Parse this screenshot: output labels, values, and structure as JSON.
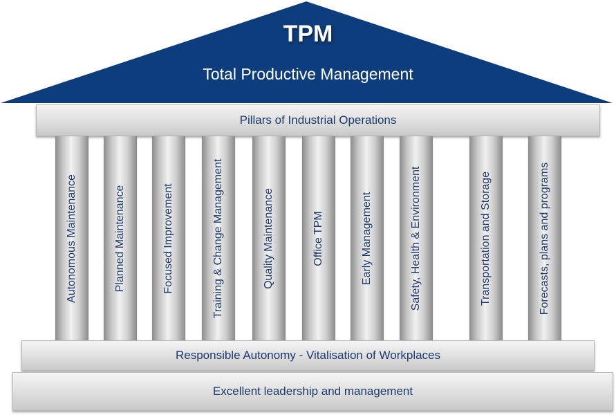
{
  "roof": {
    "title": "TPM",
    "subtitle": "Total Productive Management",
    "color": "#0d3d7c"
  },
  "architrave": {
    "label": "Pillars of Industrial Operations"
  },
  "pillars": [
    {
      "label": "Autonomous Maintenance"
    },
    {
      "label": "Planned Maintenance"
    },
    {
      "label": "Focused Improvement"
    },
    {
      "label": "Training & Change Management"
    },
    {
      "label": "Quality Maintenance"
    },
    {
      "label": "Office TPM"
    },
    {
      "label": "Early Management"
    },
    {
      "label": "Safety, Health & Environment"
    },
    {
      "label": "Transportation and Storage"
    },
    {
      "label": "Forecasts, plans and programs"
    }
  ],
  "foundation": {
    "upper": "Responsible Autonomy - Vitalisation of Workplaces",
    "lower": "Excellent leadership and management"
  },
  "colors": {
    "text": "#1c3a6b",
    "roof": "#0d3d7c"
  }
}
